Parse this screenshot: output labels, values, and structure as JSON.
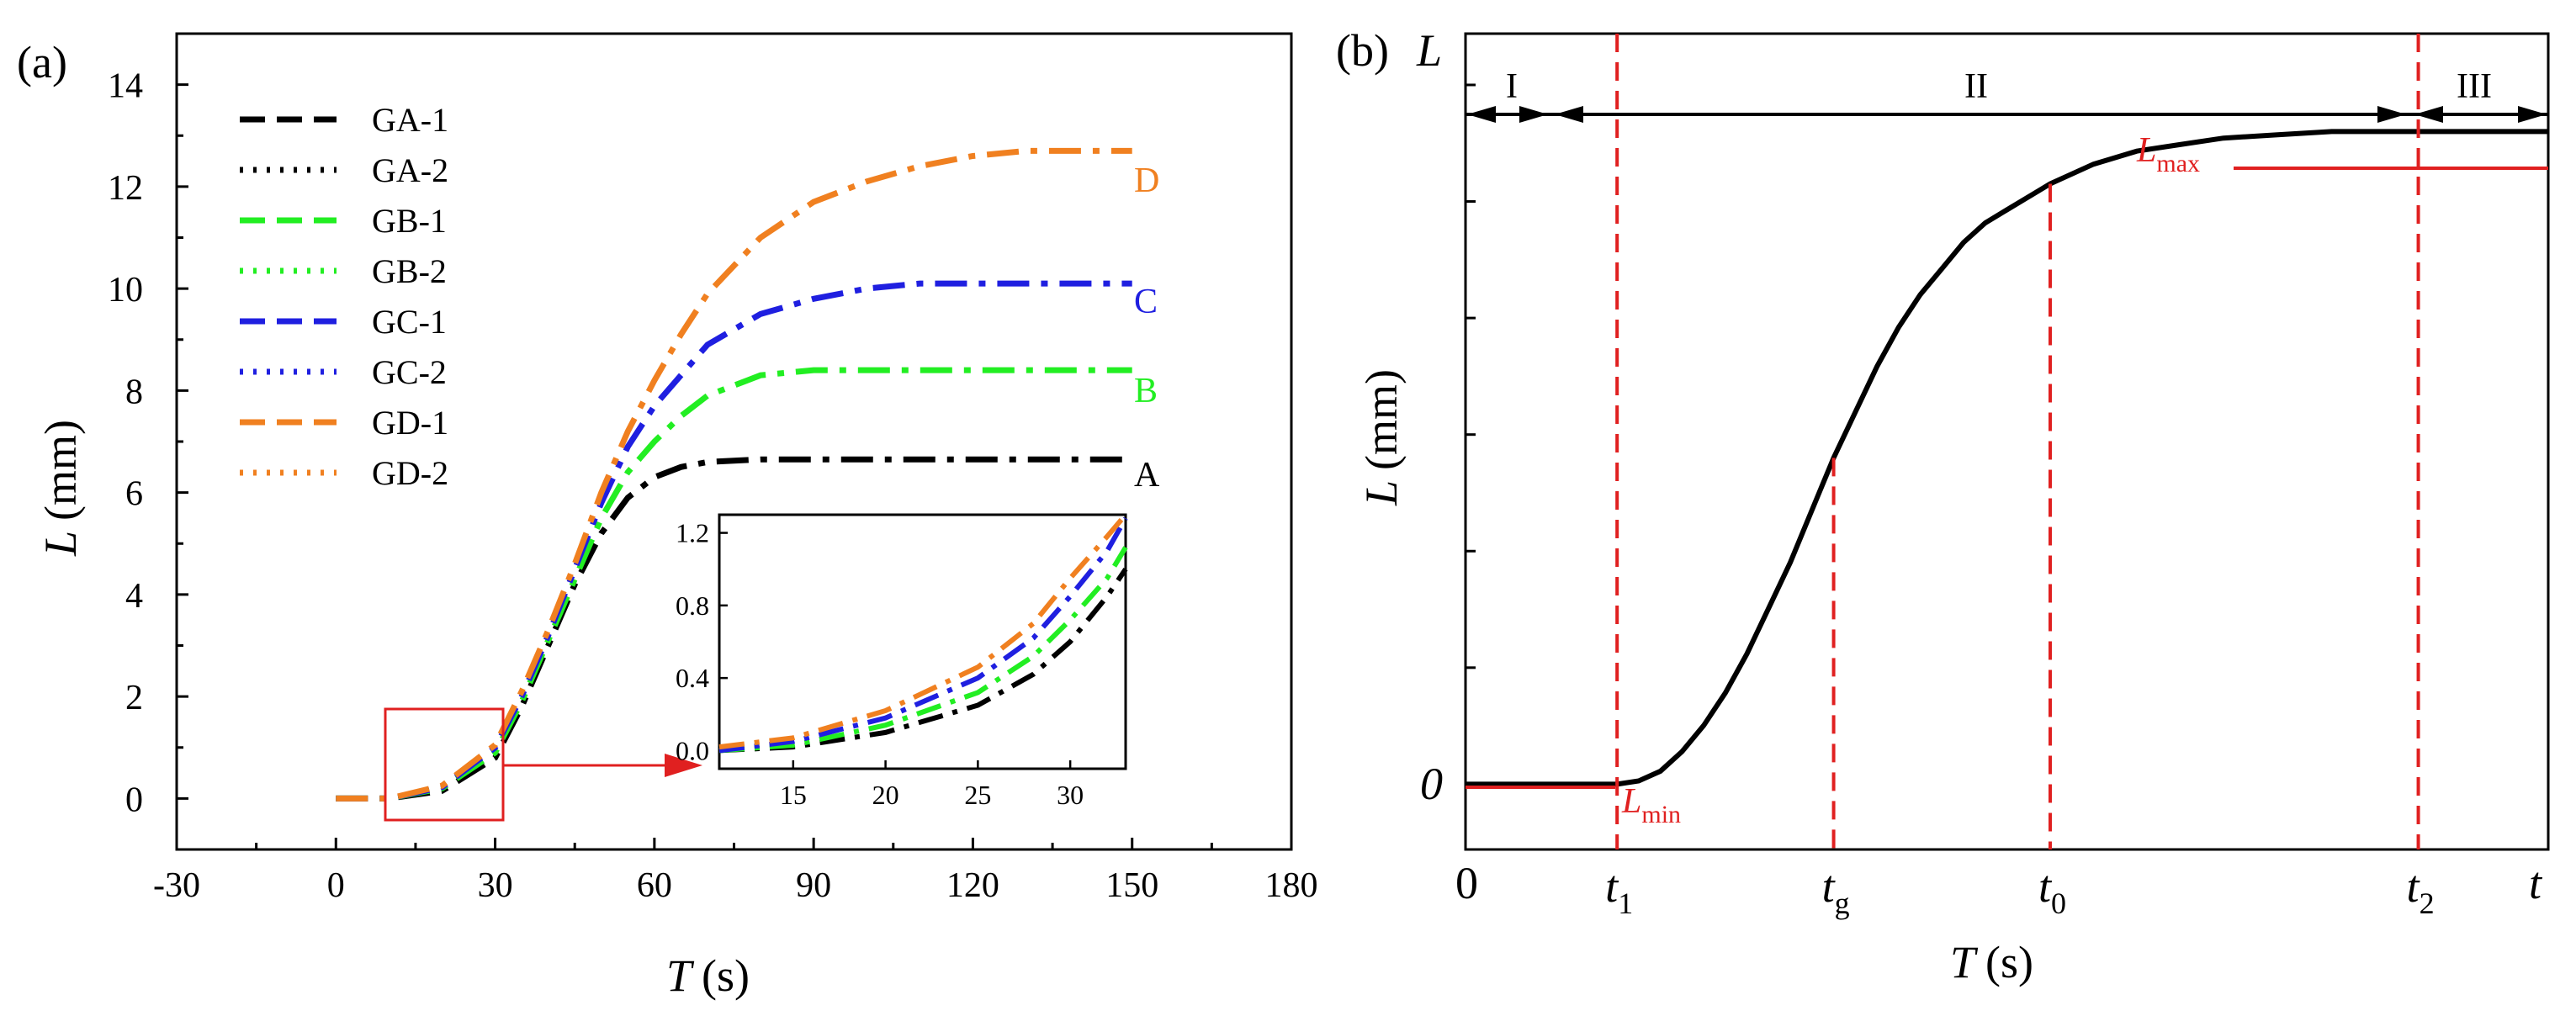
{
  "chart_data": [
    {
      "panel_label": "(a)",
      "type": "line",
      "xlabel": "T",
      "xunit": "(s)",
      "ylabel": "L",
      "yunit": "(mm)",
      "xlim": [
        -30,
        180
      ],
      "ylim": [
        -1,
        15
      ],
      "xticks": [
        -30,
        0,
        30,
        60,
        90,
        120,
        150,
        180
      ],
      "yticks": [
        0,
        2,
        4,
        6,
        8,
        10,
        12,
        14
      ],
      "legend": [
        {
          "name": "GA-1",
          "color": "#000000",
          "dash": "dash"
        },
        {
          "name": "GA-2",
          "color": "#000000",
          "dash": "dot"
        },
        {
          "name": "GB-1",
          "color": "#22ee22",
          "dash": "dash"
        },
        {
          "name": "GB-2",
          "color": "#22ee22",
          "dash": "dot"
        },
        {
          "name": "GC-1",
          "color": "#1f1fe0",
          "dash": "dash"
        },
        {
          "name": "GC-2",
          "color": "#1f1fe0",
          "dash": "dot"
        },
        {
          "name": "GD-1",
          "color": "#f08020",
          "dash": "dash"
        },
        {
          "name": "GD-2",
          "color": "#f08020",
          "dash": "dot"
        }
      ],
      "series": [
        {
          "name": "A",
          "color": "#000000",
          "x": [
            0,
            10,
            20,
            30,
            35,
            40,
            45,
            50,
            55,
            60,
            65,
            70,
            80,
            90,
            100,
            120,
            150
          ],
          "y": [
            0,
            0,
            0.15,
            0.8,
            1.8,
            3.0,
            4.2,
            5.2,
            5.9,
            6.3,
            6.5,
            6.6,
            6.65,
            6.65,
            6.65,
            6.65,
            6.65
          ]
        },
        {
          "name": "B",
          "color": "#22ee22",
          "x": [
            0,
            10,
            20,
            30,
            35,
            40,
            45,
            50,
            55,
            60,
            65,
            70,
            80,
            90,
            100,
            120,
            150
          ],
          "y": [
            0,
            0,
            0.2,
            0.9,
            1.9,
            3.1,
            4.3,
            5.5,
            6.4,
            7.0,
            7.5,
            7.9,
            8.3,
            8.4,
            8.4,
            8.4,
            8.4
          ]
        },
        {
          "name": "C",
          "color": "#1f1fe0",
          "x": [
            0,
            10,
            20,
            30,
            35,
            40,
            45,
            50,
            55,
            60,
            65,
            70,
            80,
            90,
            100,
            110,
            120,
            150
          ],
          "y": [
            0,
            0,
            0.22,
            1.0,
            2.0,
            3.2,
            4.5,
            5.8,
            6.9,
            7.7,
            8.3,
            8.9,
            9.5,
            9.8,
            10.0,
            10.1,
            10.1,
            10.1
          ]
        },
        {
          "name": "D",
          "color": "#f08020",
          "x": [
            0,
            10,
            20,
            30,
            35,
            40,
            45,
            50,
            55,
            60,
            65,
            70,
            80,
            90,
            100,
            110,
            120,
            130,
            140,
            150
          ],
          "y": [
            0,
            0,
            0.25,
            1.05,
            2.1,
            3.3,
            4.6,
            6.0,
            7.2,
            8.2,
            9.1,
            9.9,
            11.0,
            11.7,
            12.1,
            12.4,
            12.6,
            12.7,
            12.7,
            12.7
          ]
        }
      ],
      "curve_labels": [
        "D",
        "C",
        "B",
        "A"
      ],
      "inset": {
        "xlim": [
          11,
          33
        ],
        "ylim": [
          -0.1,
          1.3
        ],
        "xticks": [
          15,
          20,
          25,
          30
        ],
        "yticks": [
          0.0,
          0.4,
          0.8,
          1.2
        ],
        "xtick_labels": [
          "15",
          "20",
          "25",
          "30"
        ],
        "ytick_labels": [
          "0.0",
          "0.4",
          "0.8",
          "1.2"
        ],
        "series": [
          {
            "name": "A",
            "color": "#000000",
            "x": [
              11,
              15,
              20,
              25,
              28,
              30,
              32,
              33
            ],
            "y": [
              0.0,
              0.02,
              0.1,
              0.25,
              0.42,
              0.6,
              0.85,
              1.0
            ]
          },
          {
            "name": "B",
            "color": "#22ee22",
            "x": [
              11,
              15,
              20,
              25,
              28,
              30,
              32,
              33
            ],
            "y": [
              0.0,
              0.03,
              0.14,
              0.32,
              0.52,
              0.72,
              0.95,
              1.12
            ]
          },
          {
            "name": "C",
            "color": "#1f1fe0",
            "x": [
              11,
              15,
              20,
              25,
              28,
              30,
              32,
              33
            ],
            "y": [
              0.0,
              0.05,
              0.18,
              0.4,
              0.62,
              0.85,
              1.1,
              1.28
            ]
          },
          {
            "name": "D",
            "color": "#f08020",
            "x": [
              11,
              15,
              20,
              25,
              28,
              30,
              32,
              33
            ],
            "y": [
              0.02,
              0.07,
              0.22,
              0.46,
              0.7,
              0.95,
              1.18,
              1.3
            ]
          }
        ]
      }
    },
    {
      "panel_label": "(b)",
      "type": "line",
      "xlabel": "T",
      "xunit": "(s)",
      "ylabel": "L",
      "yunit": "(mm)",
      "axis_top_label": "L",
      "axis_right_label": "t",
      "x_origin_label": "0",
      "y_origin_label": "0",
      "xlim": [
        0,
        100
      ],
      "ylim": [
        -0.1,
        1.15
      ],
      "regions": [
        "I",
        "II",
        "III"
      ],
      "markers": [
        {
          "label": "t",
          "sub": "1",
          "x": 14
        },
        {
          "label": "t",
          "sub": "g",
          "x": 34
        },
        {
          "label": "t",
          "sub": "0",
          "x": 54
        },
        {
          "label": "t",
          "sub": "2",
          "x": 88
        }
      ],
      "annotations": {
        "Lmax": "max",
        "Lmin": "min",
        "L": "L"
      },
      "curve": {
        "x": [
          0,
          10,
          14,
          16,
          18,
          20,
          22,
          24,
          26,
          28,
          30,
          32,
          34,
          36,
          38,
          40,
          42,
          44,
          46,
          48,
          50,
          54,
          58,
          62,
          66,
          70,
          75,
          80,
          85,
          90,
          95,
          100
        ],
        "y": [
          0,
          0,
          0,
          0.005,
          0.02,
          0.05,
          0.09,
          0.14,
          0.2,
          0.27,
          0.34,
          0.42,
          0.5,
          0.57,
          0.64,
          0.7,
          0.75,
          0.79,
          0.83,
          0.86,
          0.88,
          0.92,
          0.95,
          0.97,
          0.98,
          0.99,
          0.995,
          1.0,
          1.0,
          1.0,
          1.0,
          1.0
        ]
      }
    }
  ]
}
